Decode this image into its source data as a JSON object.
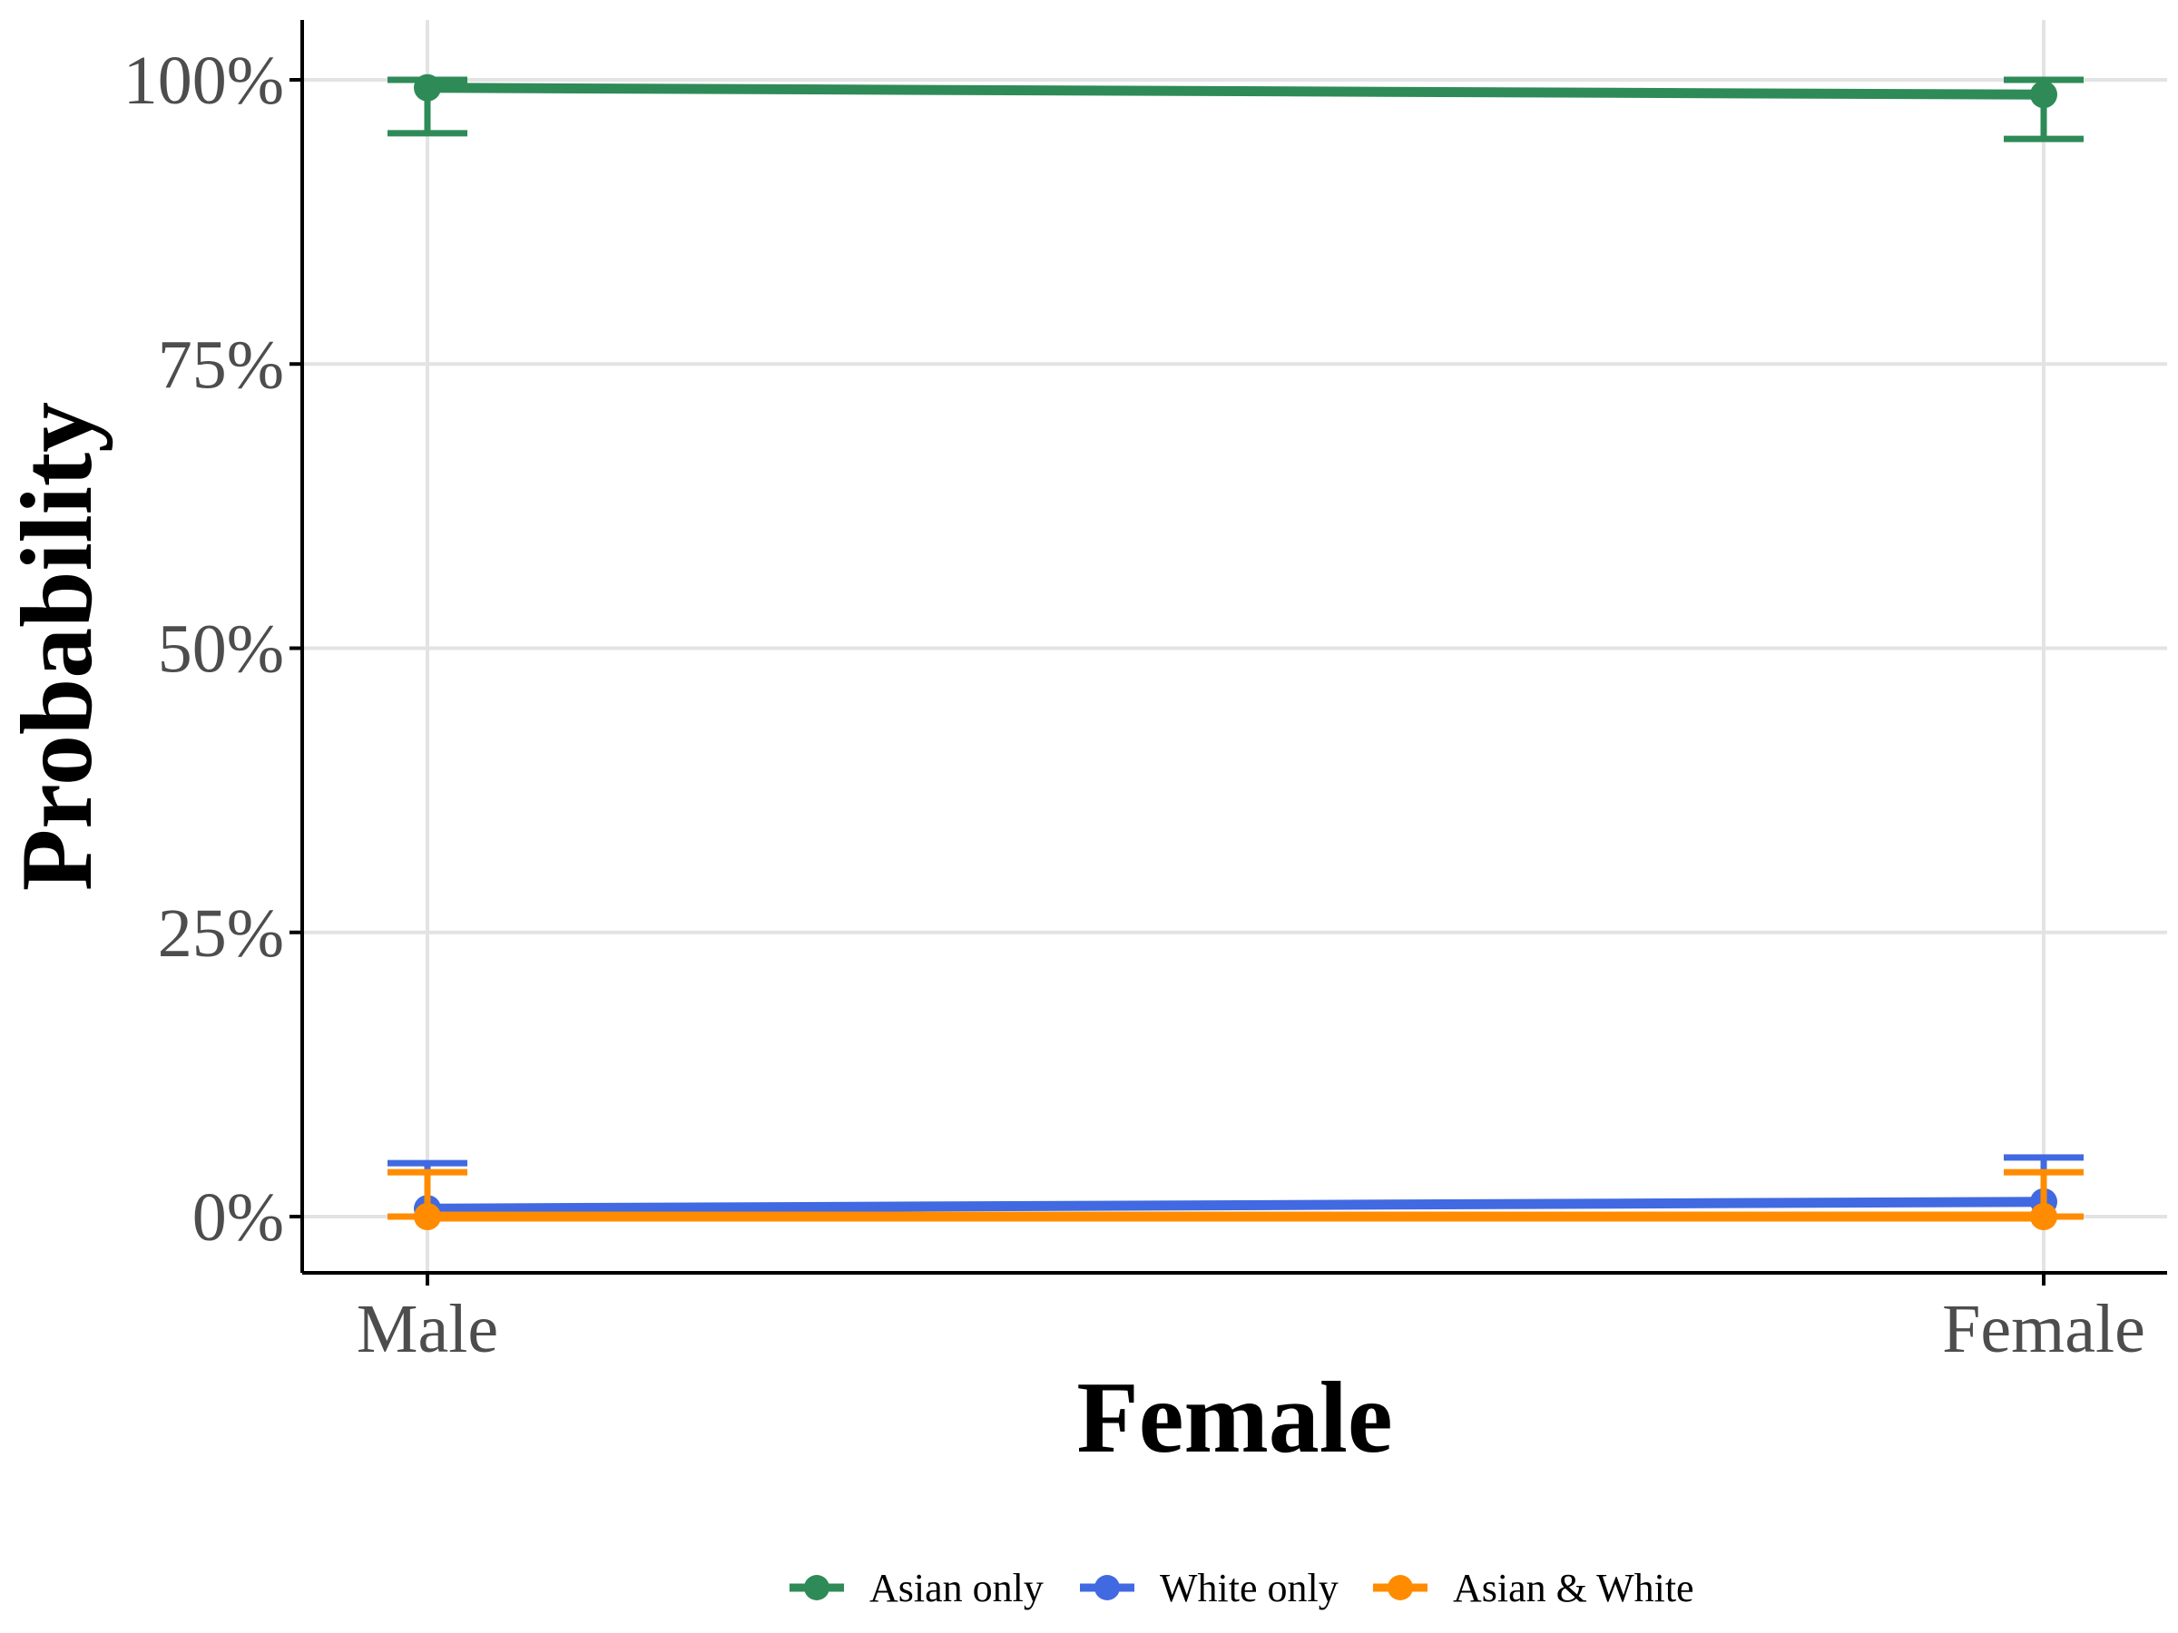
{
  "colors": {
    "Asian only": "#2e8b57",
    "White only": "#4169e1",
    "Asian & White": "#ff8c00",
    "grid": "#e3e3e3",
    "axis": "#000000"
  },
  "chart_data": {
    "type": "line",
    "xlabel": "Female",
    "ylabel": "Probability",
    "categories": [
      "Male",
      "Female"
    ],
    "y_ticks": [
      0,
      25,
      50,
      75,
      100
    ],
    "y_tick_labels": [
      "0%",
      "25%",
      "50%",
      "75%",
      "100%"
    ],
    "ylim": [
      -5,
      105
    ],
    "grid": true,
    "legend_position": "bottom",
    "series": [
      {
        "name": "Asian only",
        "values": [
          99.3,
          98.7
        ],
        "lower": [
          95.3,
          94.8
        ],
        "upper": [
          100.0,
          100.0
        ]
      },
      {
        "name": "White only",
        "values": [
          0.7,
          1.3
        ],
        "lower": [
          0.0,
          0.0
        ],
        "upper": [
          4.7,
          5.2
        ]
      },
      {
        "name": "Asian & White",
        "values": [
          0.0,
          0.0
        ],
        "lower": [
          0.0,
          0.0
        ],
        "upper": [
          3.9,
          3.9
        ]
      }
    ]
  }
}
